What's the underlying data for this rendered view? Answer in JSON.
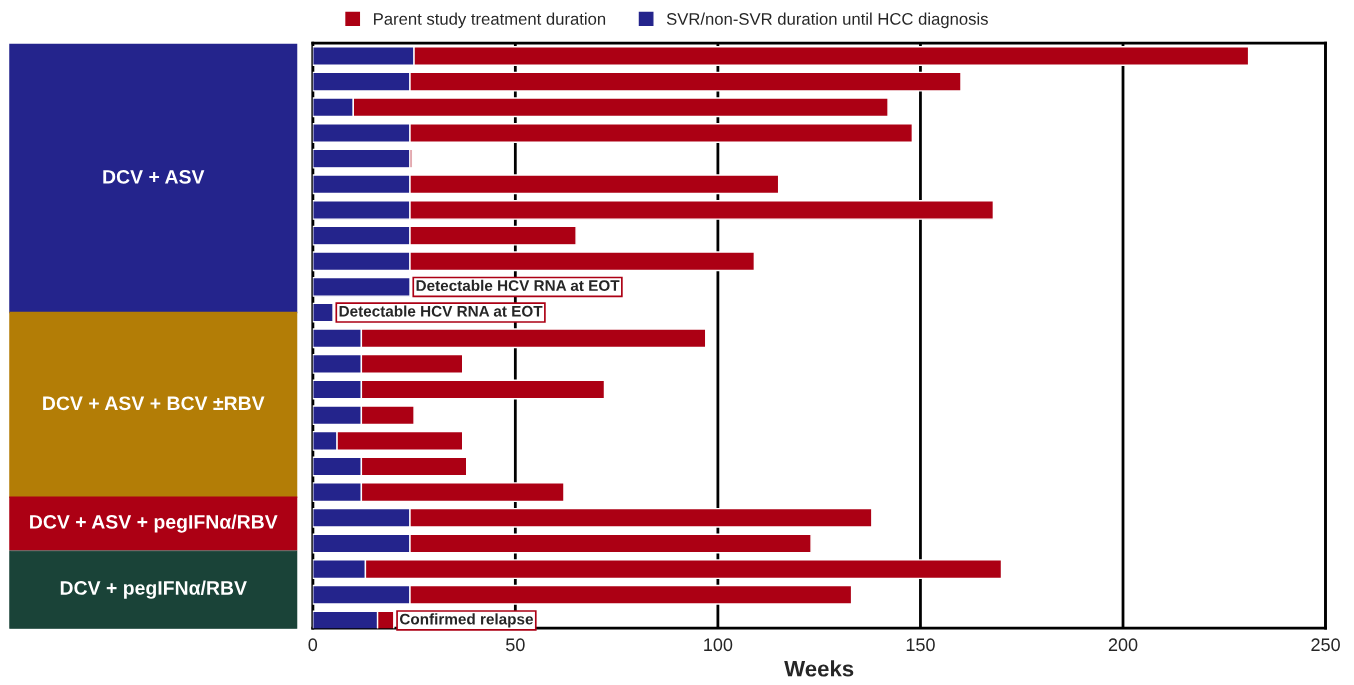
{
  "chart_data": {
    "type": "bar",
    "orientation": "horizontal",
    "stacked": true,
    "categories": [
      null,
      null,
      null,
      null,
      null,
      null,
      null,
      null,
      null,
      null,
      null,
      null,
      null,
      null,
      null,
      null,
      null,
      null,
      null,
      null,
      null,
      null,
      null
    ],
    "series": [
      {
        "name": "SVR/non-SVR duration until HCC diagnosis",
        "color": "#24248c",
        "values": [
          25,
          24,
          10,
          24,
          24,
          24,
          24,
          24,
          24,
          24,
          5,
          12,
          12,
          12,
          12,
          6,
          12,
          12,
          24,
          24,
          13,
          24,
          16
        ],
        "value_labels": [
          null,
          null,
          null,
          null,
          null,
          null,
          null,
          null,
          null,
          "Detectable HCV RNA at EOT",
          "Detectable HCV RNA at EOT",
          null,
          null,
          null,
          null,
          null,
          null,
          null,
          null,
          null,
          null,
          null,
          null
        ]
      },
      {
        "name": "Parent study treatment duration",
        "color": "#ac0014",
        "values": [
          206,
          136,
          132,
          124,
          0.5,
          91,
          144,
          41,
          85,
          null,
          null,
          85,
          25,
          60,
          13,
          31,
          26,
          50,
          114,
          99,
          157,
          109,
          4
        ],
        "value_labels": [
          null,
          null,
          null,
          null,
          null,
          null,
          null,
          null,
          null,
          null,
          null,
          null,
          null,
          null,
          null,
          null,
          null,
          null,
          null,
          null,
          null,
          null,
          "Confirmed relapse"
        ]
      }
    ],
    "xlabel": "Weeks",
    "xlim": [
      0,
      250
    ],
    "xticks": [
      0,
      50,
      100,
      150,
      200,
      250
    ],
    "grid": "x",
    "legend": "top",
    "annotations": [
      "DCV + ASV",
      "DCV + ASV + BCV ±RBV",
      "DCV + ASV + pegIFNα/RBV",
      "DCV + pegIFNα/RBV"
    ]
  }
}
